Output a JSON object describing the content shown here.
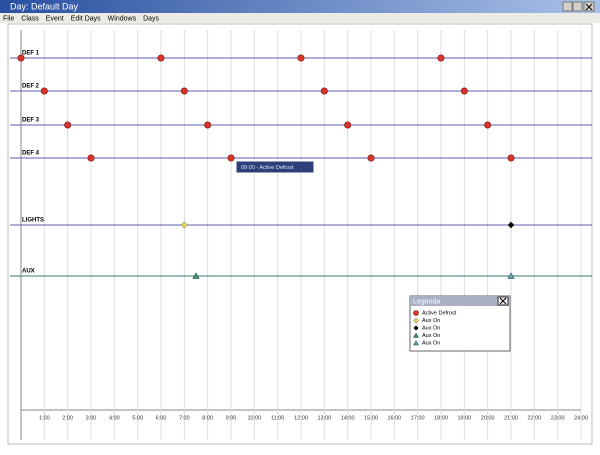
{
  "window": {
    "title": "Day: Default Day"
  },
  "menu": [
    "File",
    "Class",
    "Event",
    "Edit Days",
    "Windows",
    "Days"
  ],
  "timeline": {
    "xlim": [
      0,
      24
    ],
    "xticks": [
      {
        "value": 1,
        "label": "1:00"
      },
      {
        "value": 2,
        "label": "2:00"
      },
      {
        "value": 3,
        "label": "3:00"
      },
      {
        "value": 4,
        "label": "4:00"
      },
      {
        "value": 5,
        "label": "5:00"
      },
      {
        "value": 6,
        "label": "6:00"
      },
      {
        "value": 7,
        "label": "7:00"
      },
      {
        "value": 8,
        "label": "8:00"
      },
      {
        "value": 9,
        "label": "9:00"
      },
      {
        "value": 10,
        "label": "10:00"
      },
      {
        "value": 11,
        "label": "11:00"
      },
      {
        "value": 12,
        "label": "12:00"
      },
      {
        "value": 13,
        "label": "13:00"
      },
      {
        "value": 14,
        "label": "14:00"
      },
      {
        "value": 15,
        "label": "15:00"
      },
      {
        "value": 16,
        "label": "16:00"
      },
      {
        "value": 17,
        "label": "17:00"
      },
      {
        "value": 18,
        "label": "18:00"
      },
      {
        "value": 19,
        "label": "19:00"
      },
      {
        "value": 20,
        "label": "20:00"
      },
      {
        "value": 21,
        "label": "21:00"
      },
      {
        "value": 22,
        "label": "22:00"
      },
      {
        "value": 23,
        "label": "23:00"
      },
      {
        "value": 24,
        "label": "24:00"
      }
    ],
    "rows": [
      {
        "label": "DEF 1",
        "events": [
          {
            "hour": 0,
            "marker": "circle",
            "color": "#d9342b"
          },
          {
            "hour": 6,
            "marker": "circle",
            "color": "#d9342b"
          },
          {
            "hour": 12,
            "marker": "circle",
            "color": "#d9342b"
          },
          {
            "hour": 18,
            "marker": "circle",
            "color": "#d9342b"
          }
        ]
      },
      {
        "label": "DEF 2",
        "events": [
          {
            "hour": 1,
            "marker": "circle",
            "color": "#d9342b"
          },
          {
            "hour": 7,
            "marker": "circle",
            "color": "#d9342b"
          },
          {
            "hour": 13,
            "marker": "circle",
            "color": "#d9342b"
          },
          {
            "hour": 19,
            "marker": "circle",
            "color": "#d9342b"
          }
        ]
      },
      {
        "label": "DEF 3",
        "events": [
          {
            "hour": 2,
            "marker": "circle",
            "color": "#d9342b"
          },
          {
            "hour": 8,
            "marker": "circle",
            "color": "#d9342b"
          },
          {
            "hour": 14,
            "marker": "circle",
            "color": "#d9342b"
          },
          {
            "hour": 20,
            "marker": "circle",
            "color": "#d9342b"
          }
        ]
      },
      {
        "label": "DEF 4",
        "events": [
          {
            "hour": 3,
            "marker": "circle",
            "color": "#d9342b"
          },
          {
            "hour": 9,
            "marker": "circle",
            "color": "#d9342b"
          },
          {
            "hour": 15,
            "marker": "circle",
            "color": "#d9342b"
          },
          {
            "hour": 21,
            "marker": "circle",
            "color": "#d9342b"
          }
        ]
      },
      {
        "label": "LIGHTS",
        "events": [
          {
            "hour": 7,
            "marker": "diamond",
            "color": "#e8d85a"
          },
          {
            "hour": 21,
            "marker": "diamond",
            "color": "#000000"
          }
        ]
      },
      {
        "label": "AUX",
        "events": [
          {
            "hour": 7.5,
            "marker": "triangle",
            "color": "#3a9a6a"
          },
          {
            "hour": 21,
            "marker": "triangle",
            "color": "#5aa8a8"
          }
        ]
      }
    ]
  },
  "tooltip": "09:00 - Active Defrost",
  "legend": {
    "title": "Legenda",
    "items": [
      {
        "label": "Active Defrost",
        "marker": "circle",
        "color": "#d9342b"
      },
      {
        "label": "Aux On",
        "marker": "diamond",
        "color": "#e8d85a"
      },
      {
        "label": "Aux On",
        "marker": "diamond",
        "color": "#000000"
      },
      {
        "label": "Aux On",
        "marker": "triangle",
        "color": "#3a9a6a"
      },
      {
        "label": "Aux On",
        "marker": "triangle",
        "color": "#5aa8a8"
      }
    ]
  }
}
